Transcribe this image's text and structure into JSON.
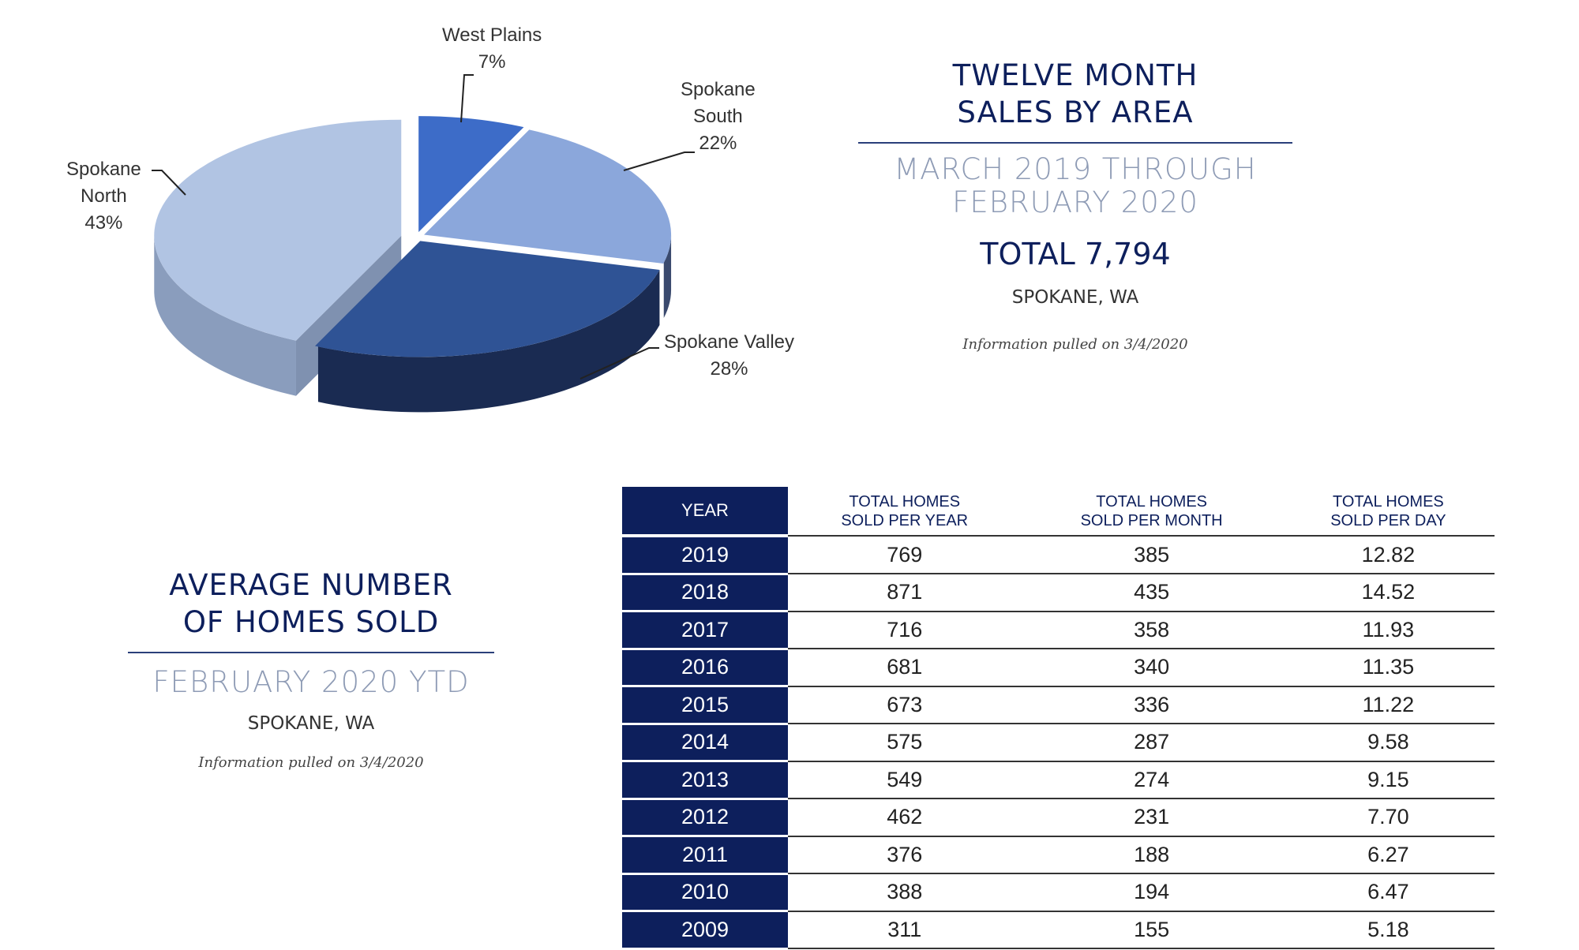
{
  "chart_data": {
    "type": "pie",
    "style": "3d-exploded",
    "slices": [
      {
        "label": "West Plains",
        "pct": "7%",
        "value": 7,
        "color": "#3d6cc8",
        "side": "#27489a"
      },
      {
        "label": "Spokane South",
        "pct": "22%",
        "value": 22,
        "color": "#8ba7db",
        "side": "#3a4a6e"
      },
      {
        "label": "Spokane Valley",
        "pct": "28%",
        "value": 28,
        "color": "#2f5395",
        "side": "#1a2b52"
      },
      {
        "label": "Spokane North",
        "pct": "43%",
        "value": 43,
        "color": "#b1c4e3",
        "side": "#8a9dbd"
      }
    ]
  },
  "sales_by_area": {
    "title_line1": "TWELVE MONTH",
    "title_line2": "SALES BY AREA",
    "period_line1": "MARCH 2019 THROUGH",
    "period_line2": "FEBRUARY 2020",
    "total": "TOTAL 7,794",
    "location": "SPOKANE, WA",
    "info": "Information pulled on 3/4/2020"
  },
  "average_homes": {
    "title_line1": "AVERAGE NUMBER",
    "title_line2": "OF HOMES SOLD",
    "period": "FEBRUARY 2020 YTD",
    "location": "SPOKANE, WA",
    "info": "Information pulled on 3/4/2020"
  },
  "table": {
    "headers": [
      {
        "l1": "YEAR",
        "l2": ""
      },
      {
        "l1": "TOTAL HOMES",
        "l2": "SOLD PER YEAR"
      },
      {
        "l1": "TOTAL HOMES",
        "l2": "SOLD PER MONTH"
      },
      {
        "l1": "TOTAL HOMES",
        "l2": "SOLD PER DAY"
      }
    ],
    "rows": [
      [
        "2019",
        "769",
        "385",
        "12.82"
      ],
      [
        "2018",
        "871",
        "435",
        "14.52"
      ],
      [
        "2017",
        "716",
        "358",
        "11.93"
      ],
      [
        "2016",
        "681",
        "340",
        "11.35"
      ],
      [
        "2015",
        "673",
        "336",
        "11.22"
      ],
      [
        "2014",
        "575",
        "287",
        "9.58"
      ],
      [
        "2013",
        "549",
        "274",
        "9.15"
      ],
      [
        "2012",
        "462",
        "231",
        "7.70"
      ],
      [
        "2011",
        "376",
        "188",
        "6.27"
      ],
      [
        "2010",
        "388",
        "194",
        "6.47"
      ],
      [
        "2009",
        "311",
        "155",
        "5.18"
      ]
    ]
  }
}
